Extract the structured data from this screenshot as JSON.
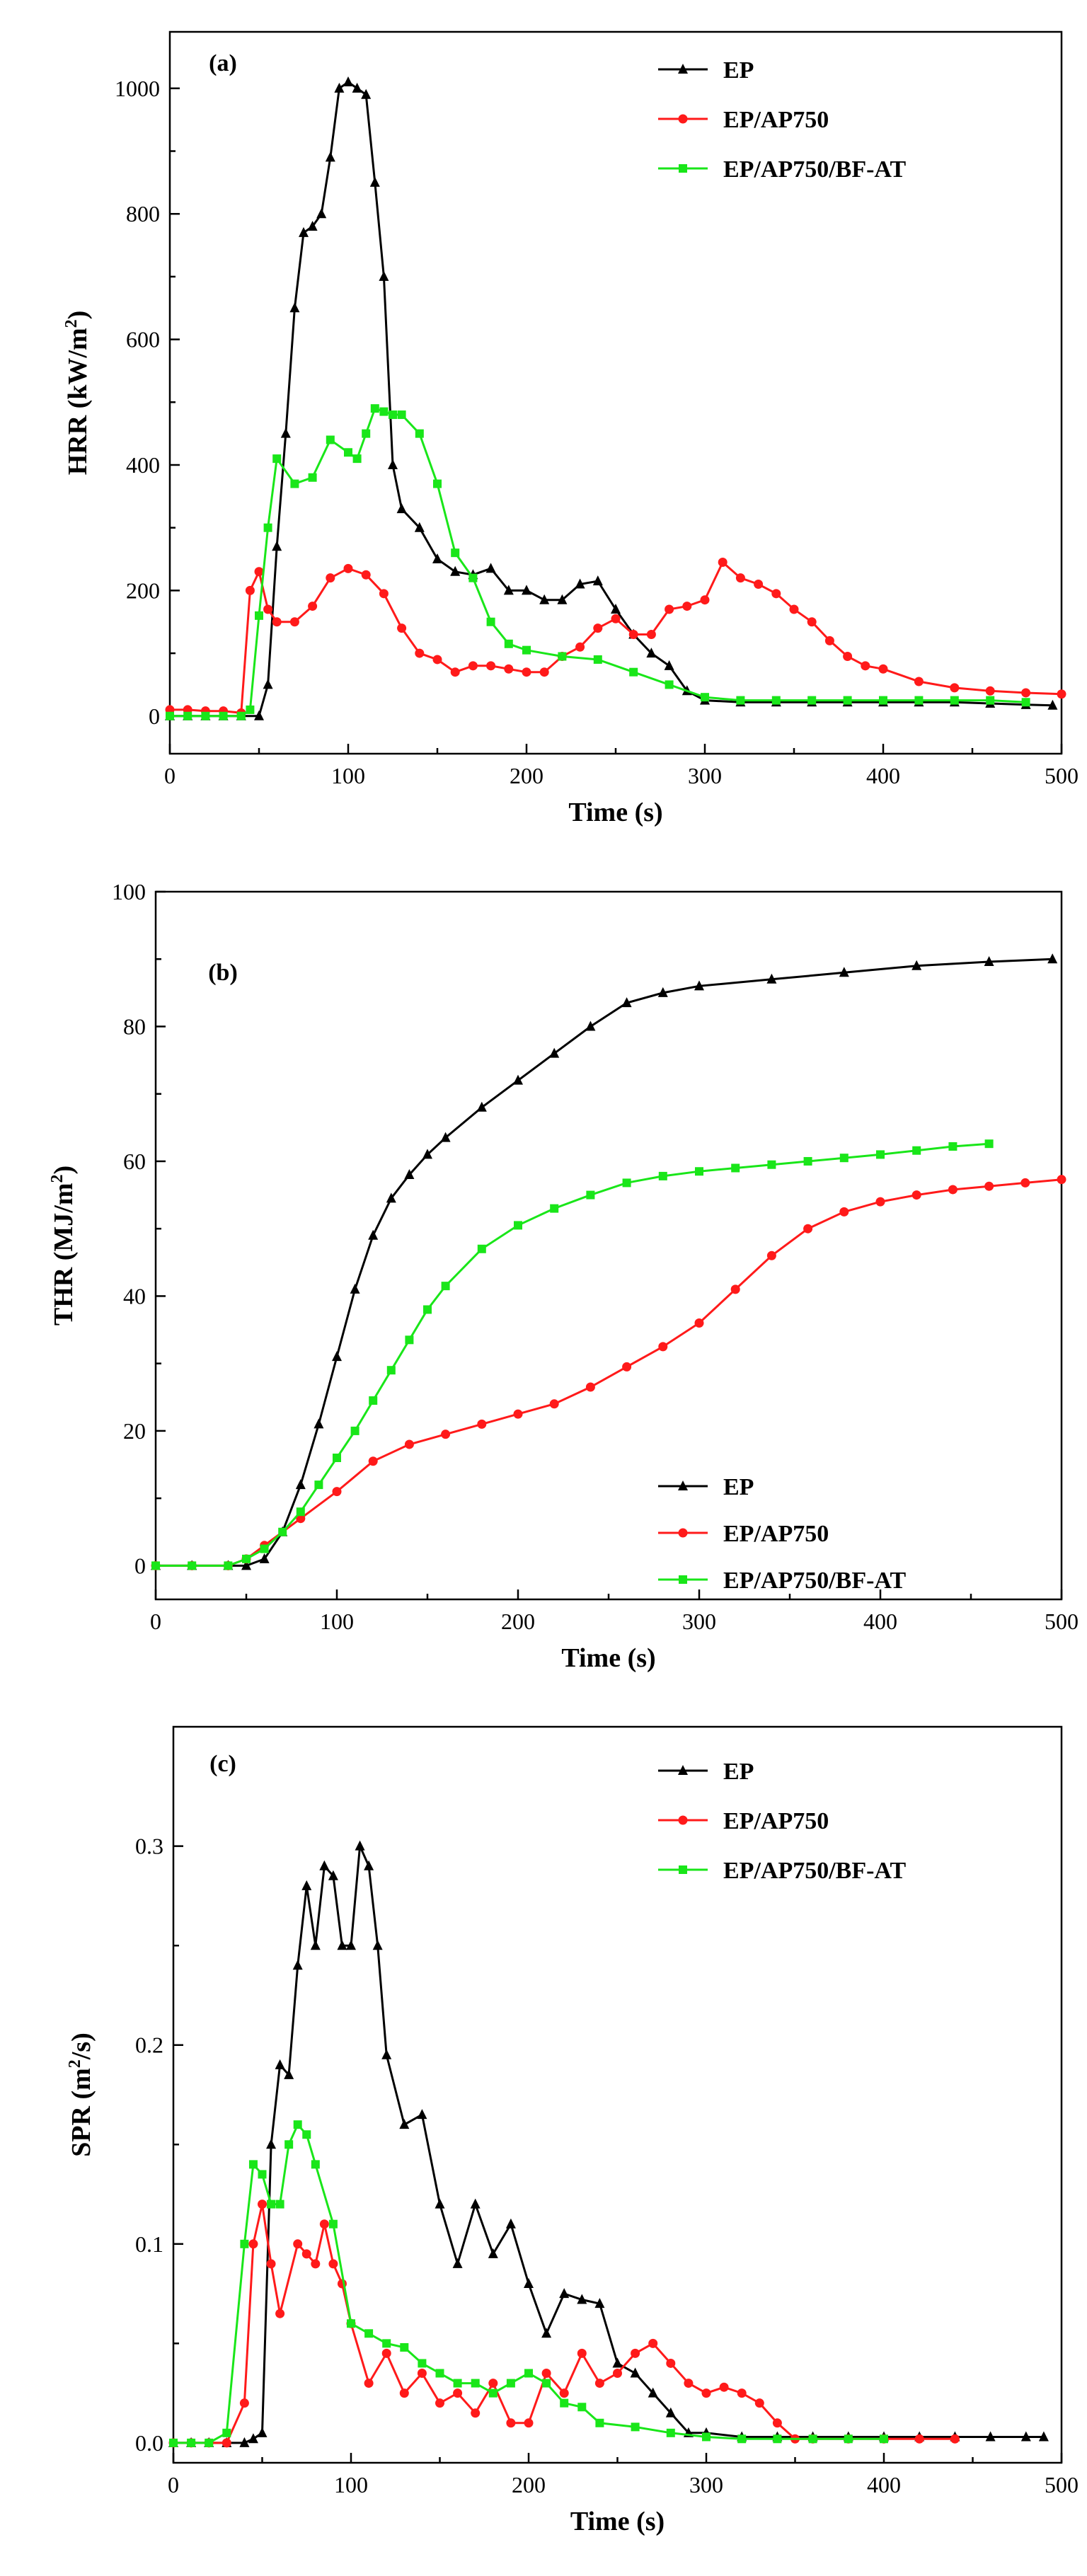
{
  "colors": {
    "EP": "#000000",
    "EP/AP750": "#ff1a1a",
    "EP/AP750/BF-AT": "#19e619"
  },
  "chart_data": [
    {
      "id": "a",
      "type": "line",
      "panel_label": "(a)",
      "xlabel": "Time (s)",
      "ylabel_main": "HRR (kW/m",
      "ylabel_sup": "2",
      "ylabel_end": ")",
      "xlim": [
        0,
        500
      ],
      "ylim": [
        -60,
        1090
      ],
      "xticks": [
        0,
        100,
        200,
        300,
        400,
        500
      ],
      "yticks": [
        0,
        200,
        400,
        600,
        800,
        1000
      ],
      "legend_position": "top-right",
      "series": [
        {
          "name": "EP",
          "marker": "triangle",
          "x": [
            0,
            10,
            20,
            30,
            40,
            50,
            55,
            60,
            65,
            70,
            75,
            80,
            85,
            90,
            95,
            100,
            105,
            110,
            115,
            120,
            125,
            130,
            140,
            150,
            160,
            170,
            180,
            190,
            200,
            210,
            220,
            230,
            240,
            250,
            260,
            270,
            280,
            290,
            300,
            320,
            340,
            360,
            380,
            400,
            420,
            440,
            460,
            480,
            495
          ],
          "y": [
            0,
            0,
            0,
            0,
            0,
            0,
            50,
            270,
            450,
            650,
            770,
            780,
            800,
            890,
            1000,
            1010,
            1000,
            990,
            850,
            700,
            400,
            330,
            300,
            250,
            230,
            225,
            235,
            200,
            200,
            185,
            185,
            210,
            215,
            170,
            130,
            100,
            80,
            40,
            25,
            22,
            22,
            22,
            22,
            22,
            22,
            22,
            20,
            18,
            17
          ]
        },
        {
          "name": "EP/AP750",
          "marker": "circle",
          "x": [
            0,
            10,
            20,
            30,
            40,
            45,
            50,
            55,
            60,
            70,
            80,
            90,
            100,
            110,
            120,
            130,
            140,
            150,
            160,
            170,
            180,
            190,
            200,
            210,
            220,
            230,
            240,
            250,
            260,
            270,
            280,
            290,
            300,
            310,
            320,
            330,
            340,
            350,
            360,
            370,
            380,
            390,
            400,
            420,
            440,
            460,
            480,
            500
          ],
          "y": [
            10,
            10,
            8,
            8,
            5,
            200,
            230,
            170,
            150,
            150,
            175,
            220,
            235,
            225,
            195,
            140,
            100,
            90,
            70,
            80,
            80,
            75,
            70,
            70,
            95,
            110,
            140,
            155,
            130,
            130,
            170,
            175,
            185,
            245,
            220,
            210,
            195,
            170,
            150,
            120,
            95,
            80,
            75,
            55,
            45,
            40,
            37,
            35
          ]
        },
        {
          "name": "EP/AP750/BF-AT",
          "marker": "square",
          "x": [
            0,
            10,
            20,
            30,
            40,
            45,
            50,
            55,
            60,
            70,
            80,
            90,
            100,
            105,
            110,
            115,
            120,
            125,
            130,
            140,
            150,
            160,
            170,
            180,
            190,
            200,
            220,
            240,
            260,
            280,
            300,
            320,
            340,
            360,
            380,
            400,
            420,
            440,
            460,
            480
          ],
          "y": [
            0,
            0,
            0,
            0,
            0,
            10,
            160,
            300,
            410,
            370,
            380,
            440,
            420,
            410,
            450,
            490,
            485,
            480,
            480,
            450,
            370,
            260,
            220,
            150,
            115,
            105,
            95,
            90,
            70,
            50,
            30,
            25,
            25,
            25,
            25,
            25,
            25,
            25,
            25,
            22
          ]
        }
      ]
    },
    {
      "id": "b",
      "type": "line",
      "panel_label": "(b)",
      "xlabel": "Time (s)",
      "ylabel_main": "THR (MJ/m",
      "ylabel_sup": "2",
      "ylabel_end": ")",
      "xlim": [
        0,
        500
      ],
      "ylim": [
        -5,
        100
      ],
      "xticks": [
        0,
        100,
        200,
        300,
        400,
        500
      ],
      "yticks": [
        0,
        20,
        40,
        60,
        80,
        100
      ],
      "legend_position": "bottom-right",
      "series": [
        {
          "name": "EP",
          "marker": "triangle",
          "x": [
            0,
            20,
            40,
            50,
            60,
            70,
            80,
            90,
            100,
            110,
            120,
            130,
            140,
            150,
            160,
            180,
            200,
            220,
            240,
            260,
            280,
            300,
            340,
            380,
            420,
            460,
            495
          ],
          "y": [
            0,
            0,
            0,
            0,
            1,
            5,
            12,
            21,
            31,
            41,
            49,
            54.5,
            58,
            61,
            63.5,
            68,
            72,
            76,
            80,
            83.5,
            85,
            86,
            87,
            88,
            89,
            89.6,
            90
          ]
        },
        {
          "name": "EP/AP750",
          "marker": "circle",
          "x": [
            0,
            20,
            40,
            50,
            60,
            80,
            100,
            120,
            140,
            160,
            180,
            200,
            220,
            240,
            260,
            280,
            300,
            320,
            340,
            360,
            380,
            400,
            420,
            440,
            460,
            480,
            500
          ],
          "y": [
            0,
            0,
            0,
            1,
            3,
            7,
            11,
            15.5,
            18,
            19.5,
            21,
            22.5,
            24,
            26.5,
            29.5,
            32.5,
            36,
            41,
            46,
            50,
            52.5,
            54,
            55,
            55.8,
            56.3,
            56.8,
            57.3
          ]
        },
        {
          "name": "EP/AP750/BF-AT",
          "marker": "square",
          "x": [
            0,
            20,
            40,
            50,
            60,
            70,
            80,
            90,
            100,
            110,
            120,
            130,
            140,
            150,
            160,
            180,
            200,
            220,
            240,
            260,
            280,
            300,
            320,
            340,
            360,
            380,
            400,
            420,
            440,
            460
          ],
          "y": [
            0,
            0,
            0,
            1,
            2.5,
            5,
            8,
            12,
            16,
            20,
            24.5,
            29,
            33.5,
            38,
            41.5,
            47,
            50.5,
            53,
            55,
            56.8,
            57.8,
            58.5,
            59,
            59.5,
            60,
            60.5,
            61,
            61.6,
            62.2,
            62.6
          ]
        }
      ]
    },
    {
      "id": "c",
      "type": "line",
      "panel_label": "(c)",
      "xlabel": "Time (s)",
      "ylabel_main": "SPR (m",
      "ylabel_sup": "2",
      "ylabel_end": "/s)",
      "xlim": [
        0,
        500
      ],
      "ylim": [
        -0.01,
        0.36
      ],
      "xticks": [
        0,
        100,
        200,
        300,
        400,
        500
      ],
      "yticks": [
        0.0,
        0.1,
        0.2,
        0.3
      ],
      "legend_position": "top-right",
      "series": [
        {
          "name": "EP",
          "marker": "triangle",
          "x": [
            0,
            10,
            20,
            30,
            40,
            45,
            50,
            55,
            60,
            65,
            70,
            75,
            80,
            85,
            90,
            95,
            100,
            105,
            110,
            115,
            120,
            130,
            140,
            150,
            160,
            170,
            180,
            190,
            200,
            210,
            220,
            230,
            240,
            250,
            260,
            270,
            280,
            290,
            300,
            320,
            340,
            360,
            380,
            400,
            420,
            440,
            460,
            480,
            490
          ],
          "y": [
            0,
            0,
            0,
            0,
            0,
            0.002,
            0.005,
            0.15,
            0.19,
            0.185,
            0.24,
            0.28,
            0.25,
            0.29,
            0.285,
            0.25,
            0.25,
            0.3,
            0.29,
            0.25,
            0.195,
            0.16,
            0.165,
            0.12,
            0.09,
            0.12,
            0.095,
            0.11,
            0.08,
            0.055,
            0.075,
            0.072,
            0.07,
            0.04,
            0.035,
            0.025,
            0.015,
            0.005,
            0.005,
            0.003,
            0.003,
            0.003,
            0.003,
            0.003,
            0.003,
            0.003,
            0.003,
            0.003,
            0.003
          ]
        },
        {
          "name": "EP/AP750",
          "marker": "circle",
          "x": [
            0,
            10,
            20,
            30,
            40,
            45,
            50,
            55,
            60,
            70,
            75,
            80,
            85,
            90,
            95,
            100,
            110,
            120,
            130,
            140,
            150,
            160,
            170,
            180,
            190,
            200,
            210,
            220,
            230,
            240,
            250,
            260,
            270,
            280,
            290,
            300,
            310,
            320,
            330,
            340,
            350,
            360,
            380,
            400,
            420,
            440
          ],
          "y": [
            0,
            0,
            0,
            0,
            0.02,
            0.1,
            0.12,
            0.09,
            0.065,
            0.1,
            0.095,
            0.09,
            0.11,
            0.09,
            0.08,
            0.06,
            0.03,
            0.045,
            0.025,
            0.035,
            0.02,
            0.025,
            0.015,
            0.03,
            0.01,
            0.01,
            0.035,
            0.025,
            0.045,
            0.03,
            0.035,
            0.045,
            0.05,
            0.04,
            0.03,
            0.025,
            0.028,
            0.025,
            0.02,
            0.01,
            0.002,
            0.002,
            0.002,
            0.002,
            0.002,
            0.002
          ]
        },
        {
          "name": "EP/AP750/BF-AT",
          "marker": "square",
          "x": [
            0,
            10,
            20,
            30,
            40,
            45,
            50,
            55,
            60,
            65,
            70,
            75,
            80,
            90,
            100,
            110,
            120,
            130,
            140,
            150,
            160,
            170,
            180,
            190,
            200,
            210,
            220,
            230,
            240,
            260,
            280,
            300,
            320,
            340,
            360,
            380,
            400
          ],
          "y": [
            0,
            0,
            0,
            0.005,
            0.1,
            0.14,
            0.135,
            0.12,
            0.12,
            0.15,
            0.16,
            0.155,
            0.14,
            0.11,
            0.06,
            0.055,
            0.05,
            0.048,
            0.04,
            0.035,
            0.03,
            0.03,
            0.025,
            0.03,
            0.035,
            0.03,
            0.02,
            0.018,
            0.01,
            0.008,
            0.005,
            0.003,
            0.002,
            0.002,
            0.002,
            0.002,
            0.002
          ]
        }
      ]
    }
  ]
}
